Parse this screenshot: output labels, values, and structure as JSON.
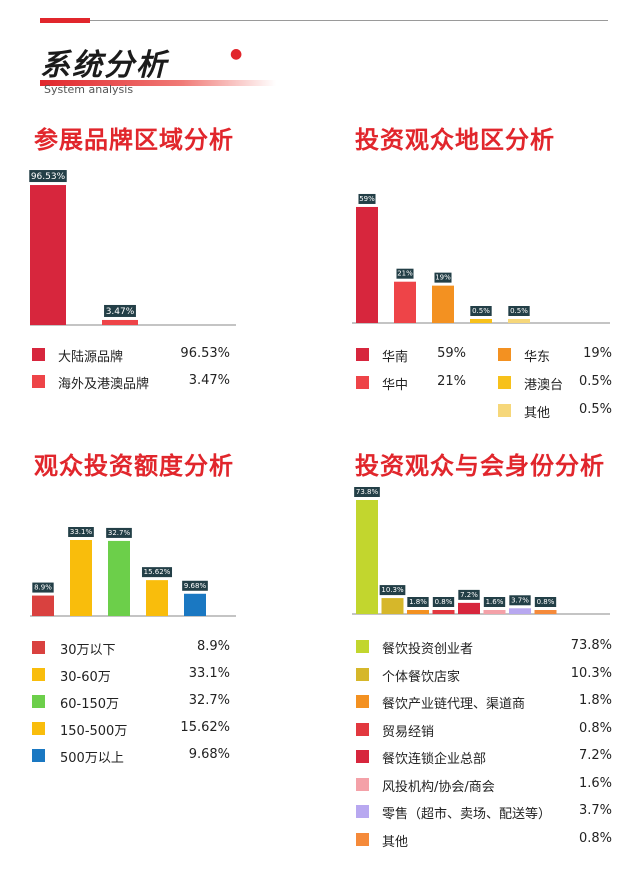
{
  "header": {
    "title": "系统分析",
    "subtitle": "System analysis"
  },
  "chart_data": [
    {
      "id": "brand",
      "type": "bar",
      "title": "参展品牌区域分析",
      "categories": [
        "大陆源品牌",
        "海外及港澳品牌"
      ],
      "values": [
        96.53,
        3.47
      ],
      "labels": [
        "96.53%",
        "3.47%"
      ],
      "colors": [
        "#d7263d",
        "#ee4448"
      ],
      "legend": [
        {
          "label": "大陆源品牌",
          "value": "96.53%",
          "color": "#d7263d"
        },
        {
          "label": "海外及港澳品牌",
          "value": "3.47%",
          "color": "#ee4448"
        }
      ]
    },
    {
      "id": "region",
      "type": "bar",
      "title": "投资观众地区分析",
      "categories": [
        "华南",
        "华中",
        "华东",
        "港澳台",
        "其他"
      ],
      "values": [
        59,
        21,
        19,
        0.5,
        0.5
      ],
      "labels": [
        "59%",
        "21%",
        "19%",
        "0.5%",
        "0.5%"
      ],
      "colors": [
        "#d7263d",
        "#ee4448",
        "#f39121",
        "#f7c11b",
        "#f6d77a"
      ],
      "legend": [
        {
          "label": "华南",
          "value": "59%",
          "color": "#d7263d"
        },
        {
          "label": "华中",
          "value": "21%",
          "color": "#ee4448"
        },
        {
          "label": "华东",
          "value": "19%",
          "color": "#f39121"
        },
        {
          "label": "港澳台",
          "value": "0.5%",
          "color": "#f7c11b"
        },
        {
          "label": "其他",
          "value": "0.5%",
          "color": "#f6d77a"
        }
      ]
    },
    {
      "id": "budget",
      "type": "bar",
      "title": "观众投资额度分析",
      "categories": [
        "30万以下",
        "30-60万",
        "60-150万",
        "150-500万",
        "500万以上"
      ],
      "values": [
        8.9,
        33.1,
        32.7,
        15.62,
        9.68
      ],
      "labels": [
        "8.9%",
        "33.1%",
        "32.7%",
        "15.62%",
        "9.68%"
      ],
      "colors": [
        "#d9413f",
        "#f9bd0c",
        "#6ccf4a",
        "#f9bd0c",
        "#1a78c2"
      ],
      "legend": [
        {
          "label": "30万以下",
          "value": "8.9%",
          "color": "#d9413f"
        },
        {
          "label": "30-60万",
          "value": "33.1%",
          "color": "#f9bd0c"
        },
        {
          "label": "60-150万",
          "value": "32.7%",
          "color": "#6ccf4a"
        },
        {
          "label": "150-500万",
          "value": "15.62%",
          "color": "#f9bd0c"
        },
        {
          "label": "500万以上",
          "value": "9.68%",
          "color": "#1a78c2"
        }
      ]
    },
    {
      "id": "identity",
      "type": "bar",
      "title": "投资观众与会身份分析",
      "categories": [
        "餐饮投资创业者",
        "个体餐饮店家",
        "餐饮产业链代理、渠道商",
        "贸易经销",
        "餐饮连锁企业总部",
        "风投机构/协会/商会",
        "零售（超市、卖场、配送等）",
        "其他"
      ],
      "values": [
        73.8,
        10.3,
        1.8,
        0.8,
        7.2,
        1.6,
        3.7,
        0.8
      ],
      "labels": [
        "73.8%",
        "10.3%",
        "1.8%",
        "0.8%",
        "7.2%",
        "1.6%",
        "3.7%",
        "0.8%"
      ],
      "colors": [
        "#c2d62e",
        "#d6b72a",
        "#f39121",
        "#e2383f",
        "#d7263d",
        "#f4a1a8",
        "#b8a8f0",
        "#f58a3a"
      ],
      "legend": [
        {
          "label": "餐饮投资创业者",
          "value": "73.8%",
          "color": "#c2d62e"
        },
        {
          "label": "个体餐饮店家",
          "value": "10.3%",
          "color": "#d6b72a"
        },
        {
          "label": "餐饮产业链代理、渠道商",
          "value": "1.8%",
          "color": "#f39121"
        },
        {
          "label": "贸易经销",
          "value": "0.8%",
          "color": "#e2383f"
        },
        {
          "label": "餐饮连锁企业总部",
          "value": "7.2%",
          "color": "#d7263d"
        },
        {
          "label": "风投机构/协会/商会",
          "value": "1.6%",
          "color": "#f4a1a8"
        },
        {
          "label": "零售（超市、卖场、配送等）",
          "value": "3.7%",
          "color": "#b8a8f0"
        },
        {
          "label": "其他",
          "value": "0.8%",
          "color": "#f58a3a"
        }
      ]
    }
  ]
}
